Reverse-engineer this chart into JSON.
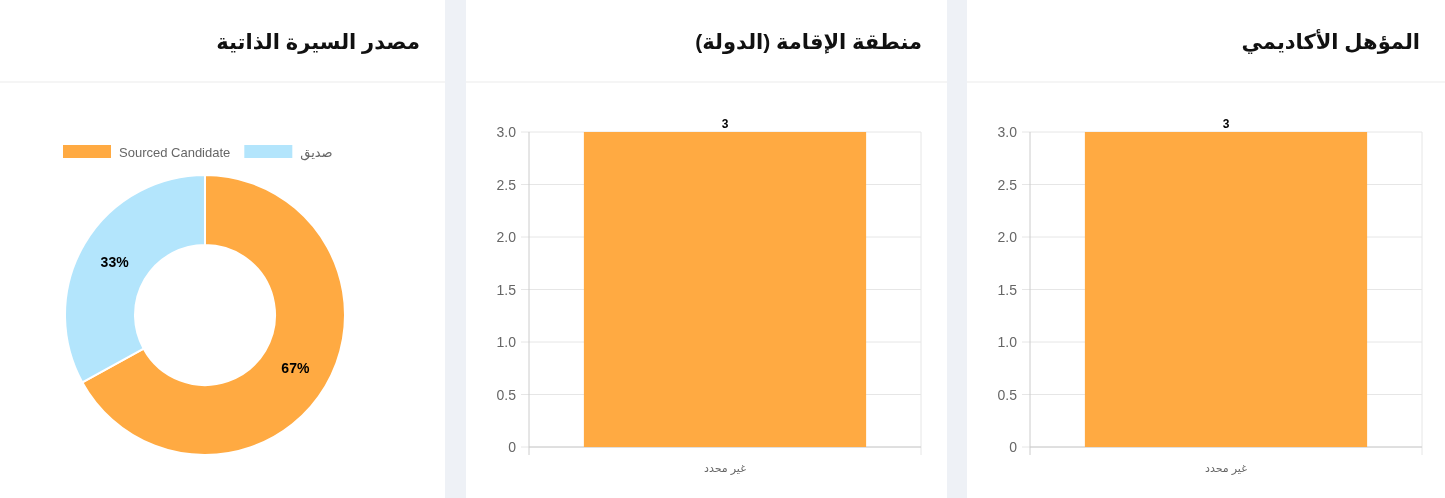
{
  "chart_data": [
    {
      "type": "donut",
      "title": "مصدر السيرة الذاتية",
      "categories": [
        "Sourced Candidate",
        "صديق"
      ],
      "values": [
        67,
        33
      ],
      "colors": [
        "#ffaa42",
        "#b3e5fc"
      ],
      "value_labels": [
        "67%",
        "33%"
      ],
      "legend": "top"
    },
    {
      "type": "bar",
      "title": "منطقة الإقامة (الدولة)",
      "categories": [
        "غير محدد"
      ],
      "values": [
        3
      ],
      "color": "#ffaa42",
      "ylim": [
        0,
        3
      ],
      "yticks": [
        0,
        0.5,
        {
          "value": 1,
          "label": "1.0"
        },
        1.5,
        {
          "value": 2,
          "label": "2.0"
        },
        2.5,
        {
          "value": 3,
          "label": "3.0"
        }
      ],
      "grid": true,
      "data_labels": true
    },
    {
      "type": "bar",
      "title": "المؤهل الأكاديمي",
      "categories": [
        "غير محدد"
      ],
      "values": [
        3
      ],
      "color": "#ffaa42",
      "ylim": [
        0,
        3
      ],
      "yticks": [
        0,
        0.5,
        {
          "value": 1,
          "label": "1.0"
        },
        1.5,
        {
          "value": 2,
          "label": "2.0"
        },
        2.5,
        {
          "value": 3,
          "label": "3.0"
        }
      ],
      "grid": true,
      "data_labels": true
    }
  ]
}
